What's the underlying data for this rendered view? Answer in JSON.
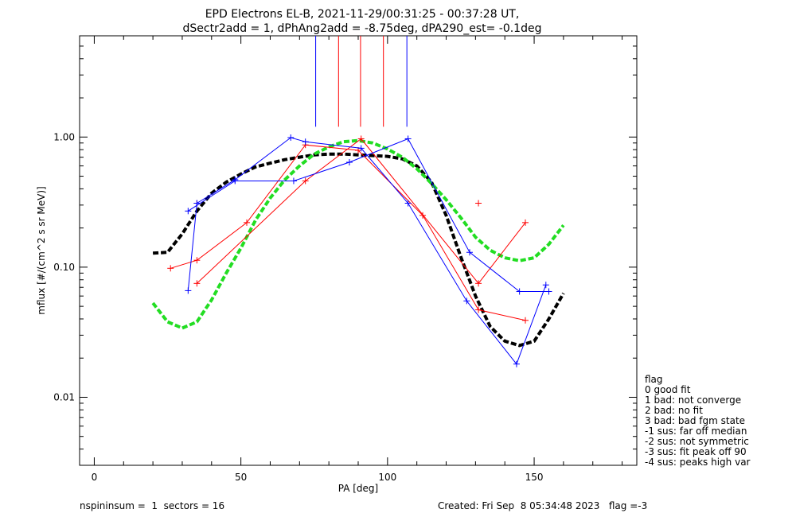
{
  "chart_data": {
    "type": "line",
    "title_lines": [
      "EPD Electrons EL-B, 2021-11-29/00:31:25 - 00:37:28 UT,",
      "dSectr2add = 1, dPhAng2add = -8.75deg, dPA290_est=  -0.1deg"
    ],
    "xlabel": "PA [deg]",
    "ylabel": "mflux [#/(cm^2 s sr MeV)]",
    "xlim": [
      -5,
      185
    ],
    "ylim": [
      0.003,
      6.0
    ],
    "yscale": "log",
    "xticks": [
      0,
      50,
      100,
      150
    ],
    "xtick_labels": [
      "0",
      "50",
      "100",
      "150"
    ],
    "yticks": [
      0.01,
      0.1,
      1.0
    ],
    "ytick_labels": [
      "0.01",
      "0.10",
      "1.00"
    ],
    "grid": false,
    "legend_placement": "right",
    "vertical_markers": [
      {
        "color": "#0000ff",
        "x": 75.5,
        "y_from": 1.2,
        "y_to": 6.0
      },
      {
        "color": "#ff0000",
        "x": 83.3,
        "y_from": 1.2,
        "y_to": 6.0
      },
      {
        "color": "#ff0000",
        "x": 90.8,
        "y_from": 1.2,
        "y_to": 6.0
      },
      {
        "color": "#ff0000",
        "x": 98.6,
        "y_from": 1.2,
        "y_to": 6.0
      },
      {
        "color": "#0000ff",
        "x": 106.6,
        "y_from": 1.2,
        "y_to": 6.0
      }
    ],
    "series": [
      {
        "color": "#ff0000",
        "style": "line",
        "x": [
          26,
          35,
          52,
          72,
          90,
          112,
          131,
          147
        ],
        "y": [
          0.098,
          0.113,
          0.22,
          0.87,
          0.79,
          0.25,
          0.047,
          0.039
        ]
      },
      {
        "color": "#ff0000",
        "style": "line",
        "x": [
          35,
          72,
          91,
          131,
          147
        ],
        "y": [
          0.075,
          0.46,
          0.97,
          0.075,
          0.22
        ]
      },
      {
        "color": "#ff0000",
        "style": "points",
        "x": [
          35,
          131
        ],
        "y": [
          0.31,
          0.31
        ]
      },
      {
        "color": "#0000ff",
        "style": "line",
        "x": [
          32,
          48,
          68,
          87,
          107,
          128,
          145,
          155
        ],
        "y": [
          0.27,
          0.46,
          0.46,
          0.64,
          0.97,
          0.13,
          0.065,
          0.065
        ]
      },
      {
        "color": "#0000ff",
        "style": "line",
        "x": [
          32,
          35,
          48,
          67,
          72,
          91,
          107,
          127,
          144,
          154
        ],
        "y": [
          0.066,
          0.31,
          0.47,
          0.99,
          0.92,
          0.82,
          0.31,
          0.055,
          0.018,
          0.073
        ]
      },
      {
        "color": "#000000",
        "style": "dashed-thick",
        "x": [
          20,
          25,
          30,
          35,
          40,
          45,
          50,
          55,
          60,
          65,
          70,
          75,
          80,
          85,
          90,
          95,
          100,
          105,
          110,
          115,
          120,
          125,
          130,
          135,
          140,
          145,
          150,
          155,
          160
        ],
        "y": [
          0.128,
          0.13,
          0.18,
          0.27,
          0.37,
          0.45,
          0.52,
          0.59,
          0.63,
          0.67,
          0.7,
          0.73,
          0.74,
          0.74,
          0.73,
          0.72,
          0.71,
          0.68,
          0.6,
          0.45,
          0.25,
          0.12,
          0.06,
          0.035,
          0.027,
          0.025,
          0.027,
          0.04,
          0.063
        ]
      },
      {
        "color": "#22dd22",
        "style": "dashed-thick",
        "x": [
          20,
          25,
          30,
          35,
          40,
          45,
          50,
          55,
          60,
          65,
          70,
          75,
          80,
          85,
          90,
          95,
          100,
          105,
          110,
          115,
          120,
          125,
          130,
          135,
          140,
          145,
          150,
          155,
          160
        ],
        "y": [
          0.053,
          0.038,
          0.034,
          0.038,
          0.056,
          0.09,
          0.14,
          0.23,
          0.34,
          0.47,
          0.6,
          0.74,
          0.84,
          0.92,
          0.94,
          0.9,
          0.81,
          0.7,
          0.57,
          0.44,
          0.33,
          0.24,
          0.17,
          0.135,
          0.118,
          0.112,
          0.118,
          0.15,
          0.21
        ]
      }
    ],
    "legend": {
      "title": "flag",
      "entries": [
        " 0 good fit",
        " 1 bad: not converge",
        " 2 bad: no fit",
        " 3 bad: bad fgm state",
        "-1 sus: far off median",
        "-2 sus: not symmetric",
        "-3 sus: fit peak off 90",
        "-4 sus: peaks high var"
      ]
    },
    "footer": {
      "left": "nspininsum =  1  sectors = 16",
      "right": "Created: Fri Sep  8 05:34:48 2023   flag =-3"
    }
  }
}
